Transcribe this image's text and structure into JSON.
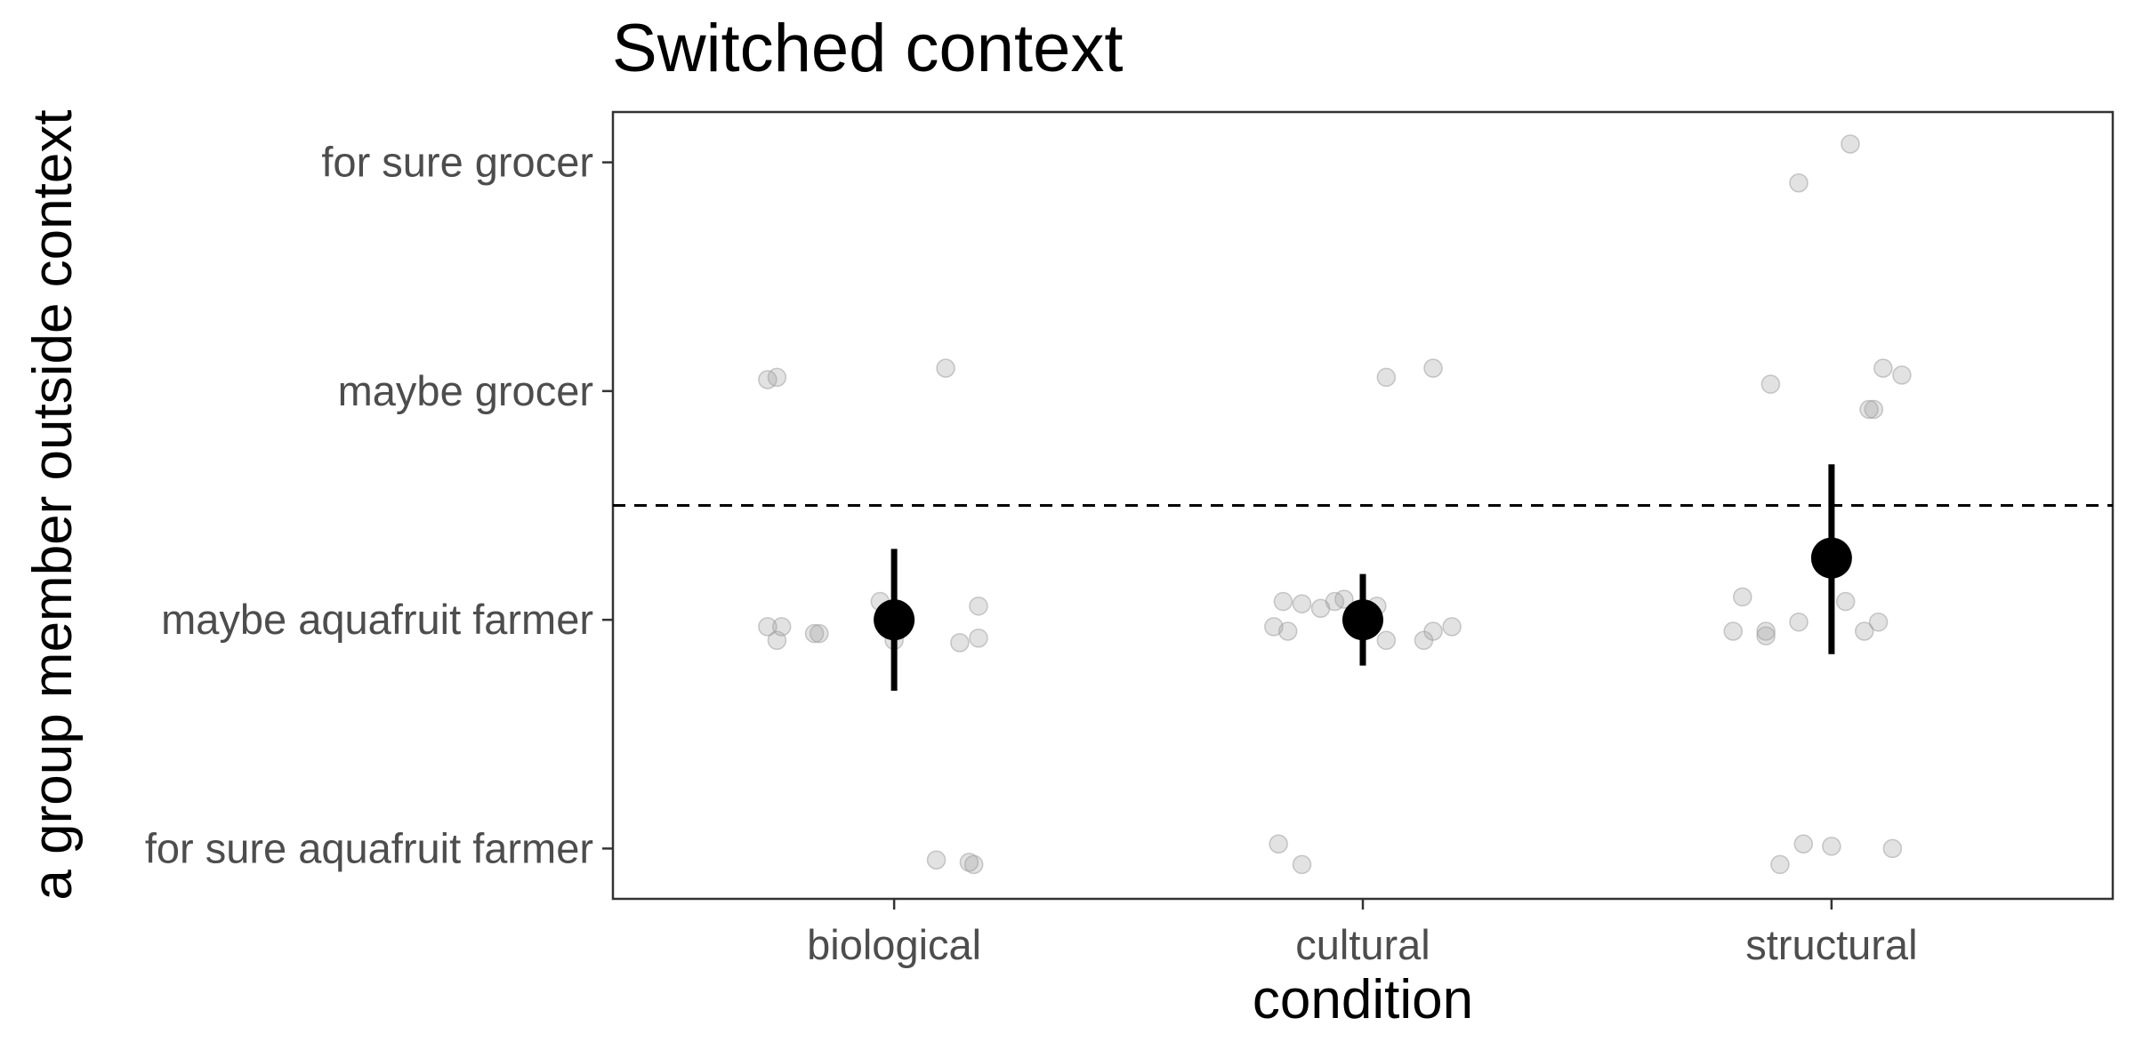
{
  "chart_data": {
    "type": "scatter",
    "title": "Switched context",
    "xlabel": "condition",
    "ylabel": "a group member outside context",
    "categories": [
      "biological",
      "cultural",
      "structural"
    ],
    "y_levels": [
      "for sure aquafruit farmer",
      "maybe aquafruit farmer",
      "maybe grocer",
      "for sure grocer"
    ],
    "y_level_values": [
      1,
      2,
      3,
      4
    ],
    "ylim": [
      0.78,
      4.22
    ],
    "grid": false,
    "reference_line": {
      "y": 2.5,
      "style": "dashed"
    },
    "colors": {
      "points": "#9e9e9e",
      "summary": "#000000",
      "frame": "#333333"
    },
    "points": [
      {
        "category": "biological",
        "x": 0.73,
        "y": 3.05
      },
      {
        "category": "biological",
        "x": 0.75,
        "y": 3.06
      },
      {
        "category": "biological",
        "x": 1.11,
        "y": 3.1
      },
      {
        "category": "biological",
        "x": 0.73,
        "y": 1.97
      },
      {
        "category": "biological",
        "x": 0.76,
        "y": 1.97
      },
      {
        "category": "biological",
        "x": 0.75,
        "y": 1.91
      },
      {
        "category": "biological",
        "x": 0.83,
        "y": 1.94
      },
      {
        "category": "biological",
        "x": 0.84,
        "y": 1.94
      },
      {
        "category": "biological",
        "x": 0.97,
        "y": 2.08
      },
      {
        "category": "biological",
        "x": 1.0,
        "y": 1.91
      },
      {
        "category": "biological",
        "x": 1.14,
        "y": 1.9
      },
      {
        "category": "biological",
        "x": 1.18,
        "y": 1.92
      },
      {
        "category": "biological",
        "x": 1.18,
        "y": 2.06
      },
      {
        "category": "biological",
        "x": 1.09,
        "y": 0.95
      },
      {
        "category": "biological",
        "x": 1.16,
        "y": 0.94
      },
      {
        "category": "biological",
        "x": 1.17,
        "y": 0.93
      },
      {
        "category": "cultural",
        "x": 2.05,
        "y": 3.06
      },
      {
        "category": "cultural",
        "x": 2.15,
        "y": 3.1
      },
      {
        "category": "cultural",
        "x": 1.83,
        "y": 2.08
      },
      {
        "category": "cultural",
        "x": 1.87,
        "y": 2.07
      },
      {
        "category": "cultural",
        "x": 1.91,
        "y": 2.05
      },
      {
        "category": "cultural",
        "x": 1.94,
        "y": 2.08
      },
      {
        "category": "cultural",
        "x": 1.96,
        "y": 2.09
      },
      {
        "category": "cultural",
        "x": 1.81,
        "y": 1.97
      },
      {
        "category": "cultural",
        "x": 1.84,
        "y": 1.95
      },
      {
        "category": "cultural",
        "x": 2.03,
        "y": 2.06
      },
      {
        "category": "cultural",
        "x": 2.05,
        "y": 1.91
      },
      {
        "category": "cultural",
        "x": 2.13,
        "y": 1.91
      },
      {
        "category": "cultural",
        "x": 2.15,
        "y": 1.95
      },
      {
        "category": "cultural",
        "x": 2.19,
        "y": 1.97
      },
      {
        "category": "cultural",
        "x": 1.82,
        "y": 1.02
      },
      {
        "category": "cultural",
        "x": 1.87,
        "y": 0.93
      },
      {
        "category": "structural",
        "x": 3.04,
        "y": 4.08
      },
      {
        "category": "structural",
        "x": 2.93,
        "y": 3.91
      },
      {
        "category": "structural",
        "x": 2.87,
        "y": 3.03
      },
      {
        "category": "structural",
        "x": 3.11,
        "y": 3.1
      },
      {
        "category": "structural",
        "x": 3.15,
        "y": 3.07
      },
      {
        "category": "structural",
        "x": 3.08,
        "y": 2.92
      },
      {
        "category": "structural",
        "x": 3.09,
        "y": 2.92
      },
      {
        "category": "structural",
        "x": 2.81,
        "y": 2.1
      },
      {
        "category": "structural",
        "x": 3.03,
        "y": 2.08
      },
      {
        "category": "structural",
        "x": 2.79,
        "y": 1.95
      },
      {
        "category": "structural",
        "x": 2.86,
        "y": 1.95
      },
      {
        "category": "structural",
        "x": 2.86,
        "y": 1.93
      },
      {
        "category": "structural",
        "x": 2.93,
        "y": 1.99
      },
      {
        "category": "structural",
        "x": 3.07,
        "y": 1.95
      },
      {
        "category": "structural",
        "x": 3.1,
        "y": 1.99
      },
      {
        "category": "structural",
        "x": 2.89,
        "y": 0.93
      },
      {
        "category": "structural",
        "x": 2.94,
        "y": 1.02
      },
      {
        "category": "structural",
        "x": 3.0,
        "y": 1.01
      },
      {
        "category": "structural",
        "x": 3.13,
        "y": 1.0
      }
    ],
    "summary": [
      {
        "category": "biological",
        "mean": 2.0,
        "lower": 1.69,
        "upper": 2.31
      },
      {
        "category": "cultural",
        "mean": 2.0,
        "lower": 1.8,
        "upper": 2.2
      },
      {
        "category": "structural",
        "mean": 2.27,
        "lower": 1.85,
        "upper": 2.68
      }
    ]
  }
}
